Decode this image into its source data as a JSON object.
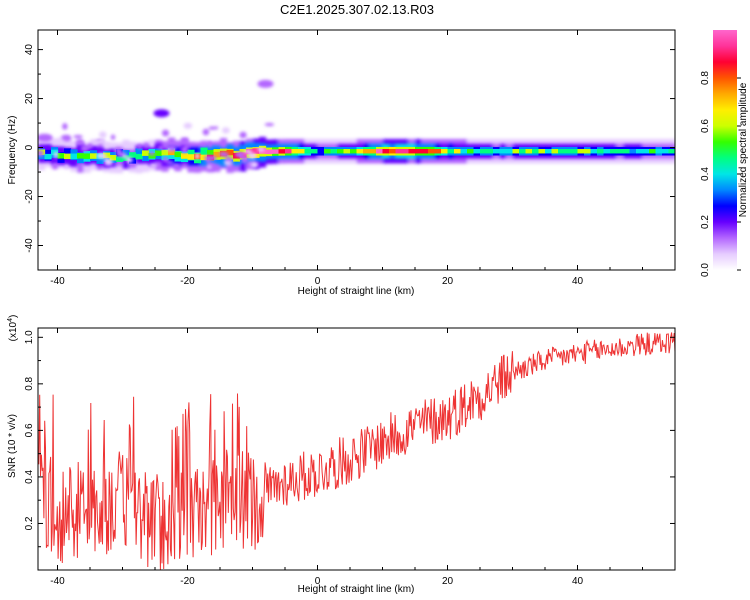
{
  "title": "C2E1.2025.307.02.13.R03",
  "chart_data": [
    {
      "type": "heatmap",
      "xlabel": "Height of straight line (km)",
      "ylabel": "Frequency (Hz)",
      "xlim": [
        -43,
        55
      ],
      "ylim": [
        -50,
        48
      ],
      "xticks": [
        -40,
        -20,
        0,
        20,
        40
      ],
      "yticks": [
        -40,
        -20,
        0,
        20,
        40
      ],
      "colorbar": {
        "label": "Normalized spectral amplitude",
        "range": [
          0,
          1
        ],
        "ticks": [
          0.0,
          0.2,
          0.4,
          0.6,
          0.8
        ],
        "colors": [
          "#ffffff",
          "#e6ccff",
          "#b366ff",
          "#6600ff",
          "#0000ff",
          "#0088ff",
          "#00e6e6",
          "#00ff80",
          "#33ff00",
          "#ccff00",
          "#ffee00",
          "#ffaa00",
          "#ff5500",
          "#ff0033",
          "#ff3399",
          "#ff66cc"
        ]
      },
      "band": {
        "x": [
          -43,
          -40,
          -35,
          -30,
          -25,
          -20,
          -15,
          -10,
          -5,
          0,
          5,
          10,
          15,
          20,
          25,
          30,
          35,
          40,
          45,
          50,
          55
        ],
        "center_freq": [
          -2.5,
          -3,
          -3.5,
          -4,
          -3,
          -3,
          -3.5,
          -2,
          -1.5,
          -1.5,
          -1.5,
          -1.5,
          -1.5,
          -1.5,
          -1.5,
          -1.5,
          -1.5,
          -1.5,
          -1.5,
          -1.5,
          -1.5
        ],
        "peak_amplitude": [
          0.5,
          0.45,
          0.55,
          0.45,
          0.55,
          0.65,
          0.85,
          0.95,
          0.9,
          0.4,
          0.5,
          0.95,
          0.95,
          0.6,
          0.5,
          0.45,
          0.5,
          0.5,
          0.45,
          0.45,
          0.45
        ]
      },
      "outliers": [
        {
          "x": -8,
          "freq": 26,
          "amplitude": 0.15
        },
        {
          "x": -24,
          "freq": 14,
          "amplitude": 0.2
        },
        {
          "x": -42,
          "freq": 4,
          "amplitude": 0.1
        }
      ]
    },
    {
      "type": "line",
      "xlabel": "Height of straight line (km)",
      "ylabel": "SNR (10 * v/v)",
      "y_multiplier": "(x10",
      "y_multiplier_exp": "4",
      "y_multiplier_close": ")",
      "xlim": [
        -43,
        55
      ],
      "ylim": [
        0,
        1.04
      ],
      "xticks": [
        -40,
        -20,
        0,
        20,
        40
      ],
      "yticks": [
        0.2,
        0.4,
        0.6,
        0.8,
        1.0
      ],
      "color": "#ee3333",
      "series": [
        {
          "x": [
            -43,
            -40,
            -35,
            -30,
            -25,
            -20,
            -15,
            -10,
            -5,
            0,
            5,
            10,
            15,
            20,
            25,
            30,
            35,
            40,
            45,
            50,
            55
          ],
          "y": [
            0.35,
            0.25,
            0.25,
            0.3,
            0.2,
            0.22,
            0.3,
            0.3,
            0.38,
            0.42,
            0.48,
            0.55,
            0.62,
            0.66,
            0.75,
            0.85,
            0.9,
            0.93,
            0.95,
            0.97,
            0.98
          ]
        }
      ]
    }
  ]
}
